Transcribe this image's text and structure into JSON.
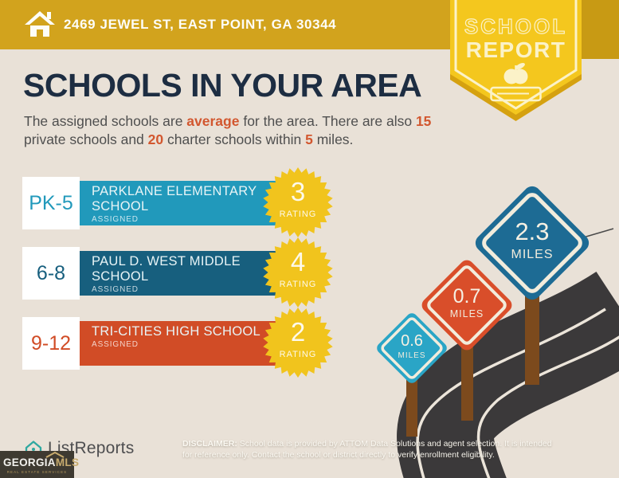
{
  "banner": {
    "address": "2469 JEWEL ST, EAST POINT, GA 30344"
  },
  "ribbon": {
    "line1": "SCHOOL",
    "line2": "REPORT"
  },
  "page": {
    "heading": "SCHOOLS IN YOUR AREA"
  },
  "intro": {
    "seg1": "The assigned schools are ",
    "hl1": "average",
    "seg2": " for the area. There are also ",
    "hl2": "15",
    "seg3": " private schools and ",
    "hl3": "20",
    "seg4": " charter schools within ",
    "hl4": "5",
    "seg5": " miles."
  },
  "schools": [
    {
      "grades": "PK-5",
      "name": "PARKLANE ELEMENTARY SCHOOL",
      "status": "ASSIGNED",
      "rating": "3",
      "rating_label": "RATING",
      "color": "#2199bb"
    },
    {
      "grades": "6-8",
      "name": "PAUL D. WEST MIDDLE SCHOOL",
      "status": "ASSIGNED",
      "rating": "4",
      "rating_label": "RATING",
      "color": "#175f7e"
    },
    {
      "grades": "9-12",
      "name": "TRI-CITIES HIGH SCHOOL",
      "status": "ASSIGNED",
      "rating": "2",
      "rating_label": "RATING",
      "color": "#d14c26"
    }
  ],
  "signs": [
    {
      "value": "0.6",
      "unit": "MILES",
      "color": "#2aa5c6"
    },
    {
      "value": "0.7",
      "unit": "MILES",
      "color": "#d94e2a"
    },
    {
      "value": "2.3",
      "unit": "MILES",
      "color": "#1d6b94"
    }
  ],
  "footer": {
    "brand": "ListReports",
    "mls_name_a": "GEORGIA",
    "mls_name_b": "MLS",
    "mls_tagline": "REAL ESTATE SERVICES",
    "disclaimer_label": "DISCLAIMER:",
    "disclaimer_rest": " School data is provided by ATTOM Data Solutions and agent selection. It is intended for reference only. Contact the school or district directly to verify enrollment eligibility."
  },
  "colors": {
    "banner_gold": "#d2a31d",
    "ribbon_yellow": "#f4c71e",
    "star_yellow": "#f1c41d",
    "accent_orange": "#d2572f",
    "heading_navy": "#1d2d42",
    "road_dark": "#3b393a",
    "post_brown": "#7c4a1d",
    "background_beige": "#e9e1d7"
  }
}
